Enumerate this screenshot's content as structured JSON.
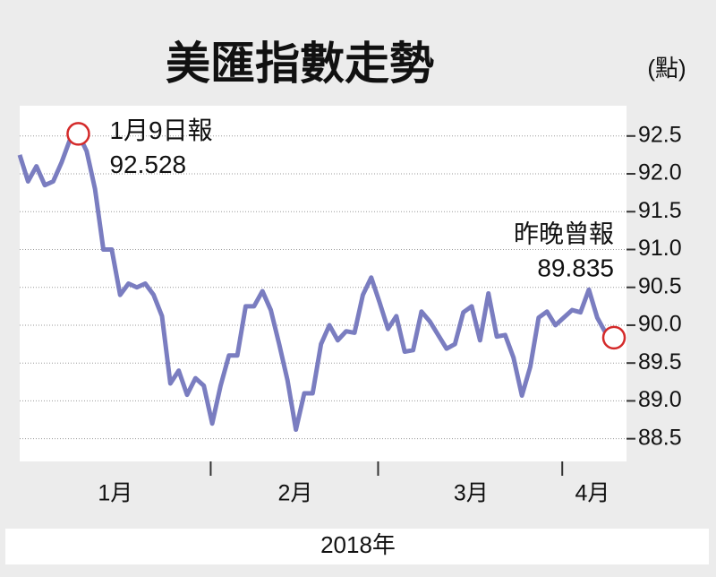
{
  "chart_data": {
    "type": "line",
    "title": "美匯指數走勢",
    "y_unit": "(點)",
    "x_label": "2018年",
    "categories": [
      "1月",
      "1月",
      "1月",
      "1月",
      "1月",
      "1月",
      "1月",
      "1月",
      "1月",
      "1月",
      "1月",
      "1月",
      "1月",
      "1月",
      "1月",
      "1月",
      "1月",
      "1月",
      "1月",
      "1月",
      "1月",
      "1月",
      "1月",
      "2月",
      "2月",
      "2月",
      "2月",
      "2月",
      "2月",
      "2月",
      "2月",
      "2月",
      "2月",
      "2月",
      "2月",
      "2月",
      "2月",
      "2月",
      "2月",
      "2月",
      "2月",
      "2月",
      "2月",
      "3月",
      "3月",
      "3月",
      "3月",
      "3月",
      "3月",
      "3月",
      "3月",
      "3月",
      "3月",
      "3月",
      "3月",
      "3月",
      "3月",
      "3月",
      "3月",
      "3月",
      "3月",
      "3月",
      "3月",
      "3月",
      "3月",
      "4月",
      "4月",
      "4月",
      "4月",
      "4月",
      "4月",
      "4月"
    ],
    "values": [
      92.25,
      91.9,
      92.1,
      91.85,
      91.9,
      92.15,
      92.45,
      92.528,
      92.3,
      91.8,
      91.0,
      91.0,
      90.4,
      90.55,
      90.5,
      90.55,
      90.4,
      90.12,
      89.23,
      89.4,
      89.08,
      89.3,
      89.2,
      88.7,
      89.2,
      89.6,
      89.6,
      90.25,
      90.25,
      90.45,
      90.2,
      89.75,
      89.27,
      88.62,
      89.1,
      89.1,
      89.75,
      90.0,
      89.8,
      89.92,
      89.9,
      90.4,
      90.63,
      90.3,
      89.95,
      90.12,
      89.65,
      89.67,
      90.18,
      90.05,
      89.87,
      89.69,
      89.75,
      90.17,
      90.25,
      89.8,
      90.42,
      89.85,
      89.87,
      89.57,
      89.07,
      89.45,
      90.1,
      90.18,
      90.0,
      90.1,
      90.2,
      90.17,
      90.47,
      90.1,
      89.9,
      89.835
    ],
    "value_labels": [
      null,
      null,
      null,
      null,
      null,
      null,
      null,
      "92.528",
      null,
      null,
      null,
      null,
      null,
      null,
      null,
      null,
      null,
      null,
      null,
      null,
      null,
      null,
      null,
      null,
      null,
      null,
      null,
      null,
      null,
      null,
      null,
      null,
      null,
      null,
      null,
      null,
      null,
      null,
      null,
      null,
      null,
      null,
      null,
      null,
      null,
      null,
      null,
      null,
      null,
      null,
      null,
      null,
      null,
      null,
      null,
      null,
      null,
      null,
      null,
      null,
      null,
      null,
      null,
      null,
      null,
      null,
      null,
      null,
      null,
      null,
      null,
      "89.835"
    ],
    "annotations": [
      "1月9日報",
      "昨晚曾報"
    ],
    "color": "#7a7dc0",
    "marker_color": "#d42a2a",
    "ylim": [
      88.2,
      92.9
    ],
    "yticks": [
      88.5,
      {
        "value": 89,
        "label": "89.0"
      },
      89.5,
      {
        "value": 90,
        "label": "90.0"
      },
      90.5,
      {
        "value": 91,
        "label": "91.0"
      },
      91.5,
      {
        "value": 92,
        "label": "92.0"
      },
      92.5
    ],
    "grid": true
  }
}
